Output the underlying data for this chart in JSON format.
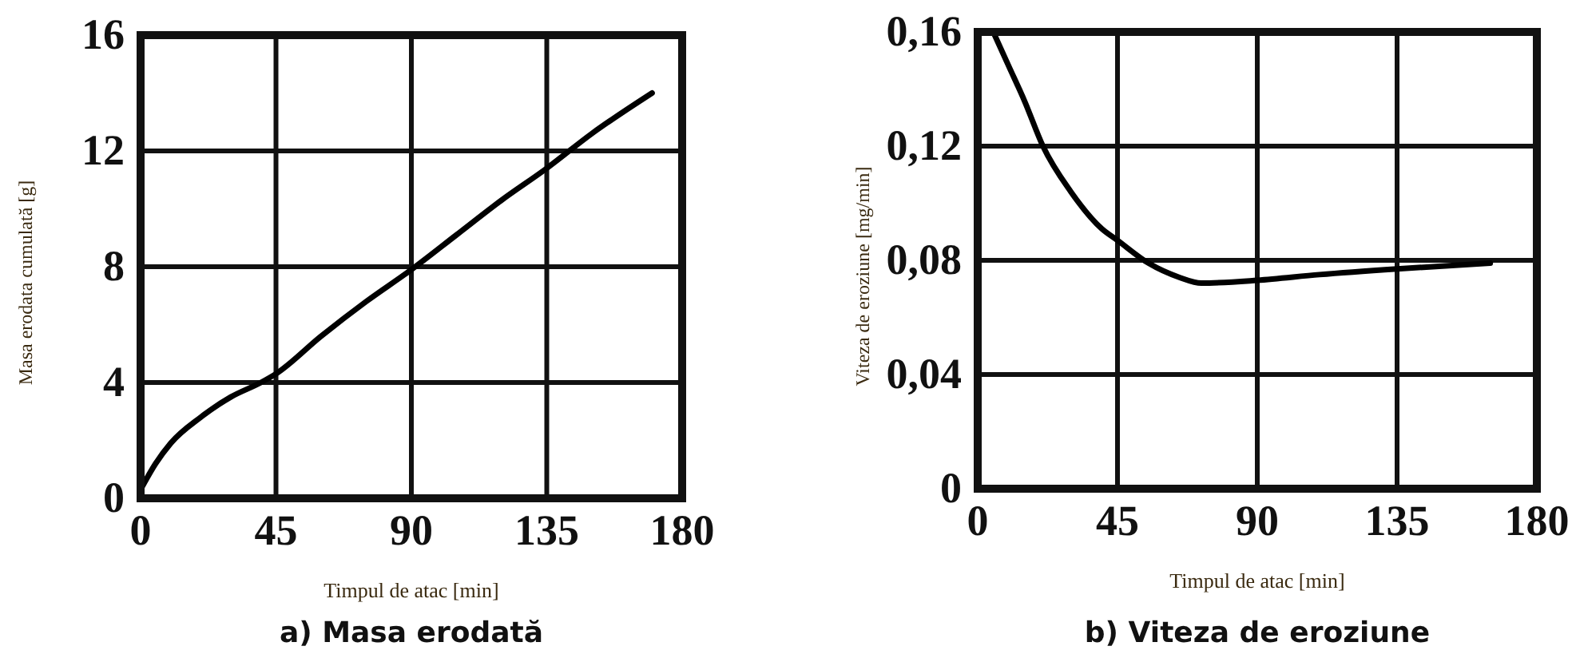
{
  "chart_data": [
    {
      "type": "line",
      "title": "a) Masa erodată",
      "xlabel": "Timpul de atac [min]",
      "ylabel": "Masa erodata cumulată [g]",
      "x": [
        0,
        5,
        10,
        20,
        30,
        40,
        45,
        60,
        75,
        90,
        105,
        120,
        135,
        150,
        170
      ],
      "series": [
        {
          "color": "#000000",
          "values": [
            0.3,
            1.2,
            1.9,
            2.8,
            3.5,
            4.0,
            4.3,
            5.6,
            6.8,
            7.9,
            9.1,
            10.3,
            11.4,
            12.6,
            14.0
          ]
        }
      ],
      "xlim": [
        0,
        180
      ],
      "xticks": [
        0,
        45,
        90,
        135,
        180
      ],
      "ylim": [
        0,
        16
      ],
      "yticks": [
        0,
        4,
        8,
        12,
        16
      ],
      "grid": true
    },
    {
      "type": "line",
      "title": "b) Viteza de eroziune",
      "xlabel": "Timpul de atac [min]",
      "ylabel": "Viteza de eroziune  [mg/min]",
      "x": [
        5,
        10,
        15,
        21,
        30,
        40,
        45,
        55,
        65,
        72,
        90,
        110,
        135,
        165
      ],
      "series": [
        {
          "color": "#000000",
          "values": [
            0.16,
            0.148,
            0.136,
            0.12,
            0.104,
            0.091,
            0.087,
            0.079,
            0.074,
            0.072,
            0.073,
            0.075,
            0.077,
            0.079
          ]
        }
      ],
      "xlim": [
        0,
        180
      ],
      "xticks": [
        0,
        45,
        90,
        135,
        180
      ],
      "ylim": [
        0,
        0.16
      ],
      "yticks": [
        0,
        {
          "value": 0.04,
          "label": "0,04"
        },
        {
          "value": 0.08,
          "label": "0,08"
        },
        {
          "value": 0.12,
          "label": "0,12"
        },
        {
          "value": 0.16,
          "label": "0,16"
        }
      ],
      "grid": true
    }
  ]
}
